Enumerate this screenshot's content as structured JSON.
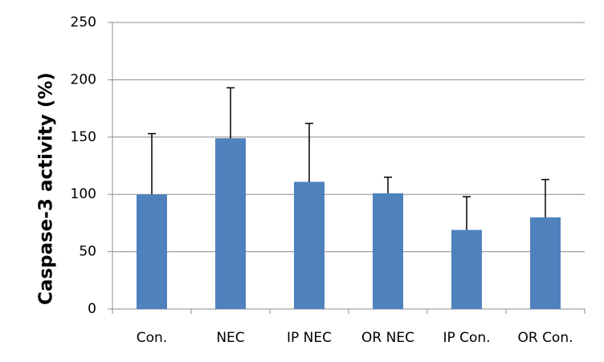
{
  "chart_data": {
    "type": "bar",
    "y_label": "Caspase-3 activity (%)",
    "categories": [
      "Con.",
      "NEC",
      "IP NEC",
      "OR NEC",
      "IP Con.",
      "OR Con."
    ],
    "values": [
      100,
      149,
      111,
      101,
      69,
      80
    ],
    "errors": [
      53,
      44,
      51,
      14,
      29,
      33
    ],
    "color": "#4f81bd",
    "ylim": [
      0,
      250
    ],
    "yticks": [
      0,
      50,
      100,
      150,
      200,
      250
    ],
    "grid": true
  }
}
